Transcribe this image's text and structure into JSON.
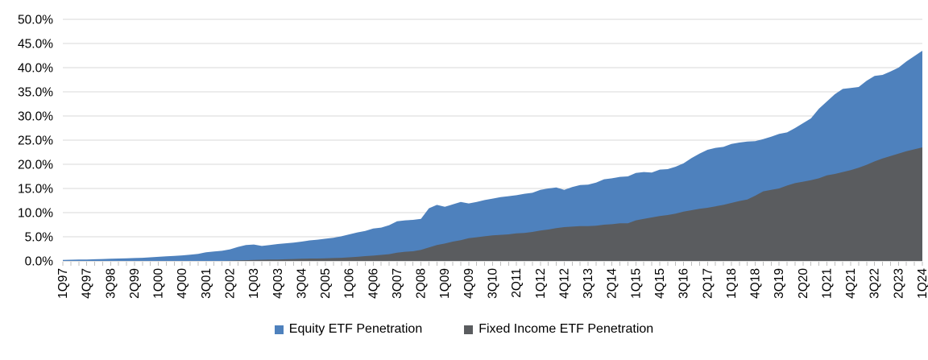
{
  "chart_data": {
    "type": "area",
    "title": "",
    "xlabel": "",
    "ylabel": "",
    "ylim": [
      0,
      50
    ],
    "grid": true,
    "overlapping_series": true,
    "legend_position": "bottom",
    "x_label_step": 3,
    "y_ticks": [
      {
        "value": 0,
        "label": "0.0%"
      },
      {
        "value": 5,
        "label": "5.0%"
      },
      {
        "value": 10,
        "label": "10.0%"
      },
      {
        "value": 15,
        "label": "15.0%"
      },
      {
        "value": 20,
        "label": "20.0%"
      },
      {
        "value": 25,
        "label": "25.0%"
      },
      {
        "value": 30,
        "label": "30.0%"
      },
      {
        "value": 35,
        "label": "35.0%"
      },
      {
        "value": 40,
        "label": "40.0%"
      },
      {
        "value": 45,
        "label": "45.0%"
      },
      {
        "value": 50,
        "label": "50.0%"
      }
    ],
    "categories": [
      "1Q97",
      "2Q97",
      "3Q97",
      "4Q97",
      "1Q98",
      "2Q98",
      "3Q98",
      "4Q98",
      "1Q99",
      "2Q99",
      "3Q99",
      "4Q99",
      "1Q00",
      "2Q00",
      "3Q00",
      "4Q00",
      "1Q01",
      "2Q01",
      "3Q01",
      "4Q01",
      "1Q02",
      "2Q02",
      "3Q02",
      "4Q02",
      "1Q03",
      "2Q03",
      "3Q03",
      "4Q03",
      "1Q04",
      "2Q04",
      "3Q04",
      "4Q04",
      "1Q05",
      "2Q05",
      "3Q05",
      "4Q05",
      "1Q06",
      "2Q06",
      "3Q06",
      "4Q06",
      "1Q07",
      "2Q07",
      "3Q07",
      "4Q07",
      "1Q08",
      "2Q08",
      "3Q08",
      "4Q08",
      "1Q09",
      "2Q09",
      "3Q09",
      "4Q09",
      "1Q10",
      "2Q10",
      "3Q10",
      "4Q10",
      "1Q11",
      "2Q11",
      "3Q11",
      "4Q11",
      "1Q12",
      "2Q12",
      "3Q12",
      "4Q12",
      "1Q13",
      "2Q13",
      "3Q13",
      "4Q13",
      "1Q14",
      "2Q14",
      "3Q14",
      "4Q14",
      "1Q15",
      "2Q15",
      "3Q15",
      "4Q15",
      "1Q16",
      "2Q16",
      "3Q16",
      "4Q16",
      "1Q17",
      "2Q17",
      "3Q17",
      "4Q17",
      "1Q18",
      "2Q18",
      "3Q18",
      "4Q18",
      "1Q19",
      "2Q19",
      "3Q19",
      "4Q19",
      "1Q20",
      "2Q20",
      "3Q20",
      "4Q20",
      "1Q21",
      "2Q21",
      "3Q21",
      "4Q21",
      "1Q22",
      "2Q22",
      "3Q22",
      "4Q22",
      "1Q23",
      "2Q23",
      "3Q23",
      "4Q23",
      "1Q24"
    ],
    "series": [
      {
        "name": "Equity ETF Penetration",
        "color": "#4E81BD",
        "values": [
          0.2,
          0.25,
          0.3,
          0.3,
          0.35,
          0.4,
          0.45,
          0.5,
          0.55,
          0.6,
          0.65,
          0.75,
          0.85,
          0.95,
          1.05,
          1.15,
          1.3,
          1.45,
          1.8,
          1.95,
          2.1,
          2.4,
          2.9,
          3.3,
          3.4,
          3.1,
          3.3,
          3.5,
          3.65,
          3.8,
          4.0,
          4.25,
          4.4,
          4.6,
          4.8,
          5.1,
          5.5,
          5.9,
          6.2,
          6.7,
          6.9,
          7.4,
          8.2,
          8.4,
          8.5,
          8.7,
          10.9,
          11.6,
          11.2,
          11.7,
          12.2,
          11.9,
          12.2,
          12.6,
          12.9,
          13.2,
          13.4,
          13.6,
          13.9,
          14.1,
          14.7,
          15.0,
          15.2,
          14.7,
          15.3,
          15.7,
          15.8,
          16.2,
          16.9,
          17.1,
          17.4,
          17.5,
          18.2,
          18.4,
          18.3,
          18.9,
          19.0,
          19.5,
          20.2,
          21.3,
          22.2,
          23.0,
          23.4,
          23.6,
          24.2,
          24.5,
          24.7,
          24.8,
          25.2,
          25.7,
          26.3,
          26.6,
          27.5,
          28.5,
          29.5,
          31.5,
          33.0,
          34.5,
          35.6,
          35.8,
          36.0,
          37.3,
          38.3,
          38.5,
          39.2,
          40.0,
          41.3,
          42.4,
          43.5
        ]
      },
      {
        "name": "Fixed Income ETF Penetration",
        "color": "#5A5C5F",
        "values": [
          0,
          0,
          0,
          0,
          0,
          0,
          0,
          0,
          0,
          0,
          0,
          0,
          0,
          0,
          0,
          0,
          0,
          0,
          0,
          0,
          0,
          0.05,
          0.1,
          0.15,
          0.2,
          0.25,
          0.3,
          0.3,
          0.35,
          0.4,
          0.45,
          0.5,
          0.5,
          0.55,
          0.6,
          0.65,
          0.75,
          0.85,
          1.0,
          1.1,
          1.25,
          1.4,
          1.7,
          1.9,
          2.0,
          2.3,
          2.8,
          3.3,
          3.6,
          4.0,
          4.3,
          4.7,
          4.9,
          5.1,
          5.3,
          5.4,
          5.5,
          5.7,
          5.8,
          6.0,
          6.3,
          6.5,
          6.8,
          7.0,
          7.1,
          7.2,
          7.2,
          7.3,
          7.5,
          7.6,
          7.8,
          7.8,
          8.4,
          8.7,
          9.0,
          9.3,
          9.5,
          9.8,
          10.2,
          10.5,
          10.8,
          11.0,
          11.3,
          11.6,
          12.0,
          12.4,
          12.7,
          13.5,
          14.4,
          14.7,
          15.0,
          15.6,
          16.1,
          16.4,
          16.7,
          17.1,
          17.7,
          18.0,
          18.4,
          18.8,
          19.3,
          19.9,
          20.6,
          21.2,
          21.7,
          22.2,
          22.7,
          23.1,
          23.5
        ]
      }
    ],
    "colors": {
      "gridline": "#D9D9D9",
      "axis": "#BFBFBF",
      "tick": "#BFBFBF",
      "label_text": "#000000"
    }
  }
}
